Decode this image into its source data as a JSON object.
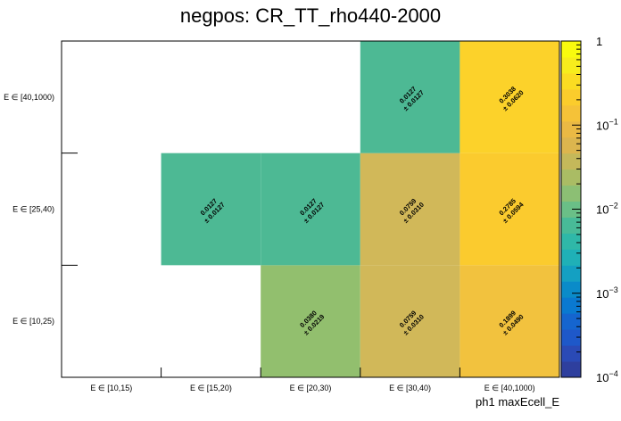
{
  "chart_data": {
    "type": "heatmap",
    "title": "negpos: CR_TT_rho440-2000",
    "xlabel": "ph1 maxEcell_E",
    "ylabel": "",
    "x_categories": [
      "E ∈ [10,15)",
      "E ∈ [15,20)",
      "E ∈ [20,30)",
      "E ∈ [30,40)",
      "E ∈ [40,1000)"
    ],
    "y_categories": [
      "E ∈ [10,25)",
      "E ∈ [25,40)",
      "E ∈ [40,1000)"
    ],
    "z_scale": "log",
    "z_range": [
      0.0001,
      1
    ],
    "z_tick_labels": [
      {
        "value": 1,
        "label": "1"
      },
      {
        "value": 0.1,
        "label": "10",
        "exp": "−1"
      },
      {
        "value": 0.01,
        "label": "10",
        "exp": "−2"
      },
      {
        "value": 0.001,
        "label": "10",
        "exp": "−3"
      },
      {
        "value": 0.0001,
        "label": "10",
        "exp": "−4"
      }
    ],
    "cells": [
      {
        "x": 2,
        "y": 0,
        "value": 0.038,
        "value_text": "0.0380",
        "error_text": "± 0.0219",
        "color": "#92bf6e"
      },
      {
        "x": 3,
        "y": 0,
        "value": 0.0759,
        "value_text": "0.0759",
        "error_text": "± 0.0310",
        "color": "#d1b859"
      },
      {
        "x": 4,
        "y": 0,
        "value": 0.1899,
        "value_text": "0.1899",
        "error_text": "± 0.0490",
        "color": "#f2c23e"
      },
      {
        "x": 1,
        "y": 1,
        "value": 0.0127,
        "value_text": "0.0127",
        "error_text": "± 0.0127",
        "color": "#4db994"
      },
      {
        "x": 2,
        "y": 1,
        "value": 0.0127,
        "value_text": "0.0127",
        "error_text": "± 0.0127",
        "color": "#4db994"
      },
      {
        "x": 3,
        "y": 1,
        "value": 0.0759,
        "value_text": "0.0759",
        "error_text": "± 0.0310",
        "color": "#d1b859"
      },
      {
        "x": 4,
        "y": 1,
        "value": 0.2785,
        "value_text": "0.2785",
        "error_text": "± 0.0594",
        "color": "#fbcb2e"
      },
      {
        "x": 3,
        "y": 2,
        "value": 0.0127,
        "value_text": "0.0127",
        "error_text": "± 0.0127",
        "color": "#4db994"
      },
      {
        "x": 4,
        "y": 2,
        "value": 0.3038,
        "value_text": "0.3038",
        "error_text": "± 0.0620",
        "color": "#fcd22a"
      }
    ],
    "palette": [
      "#2e3f9e",
      "#2a4ab6",
      "#1e58c9",
      "#1565cf",
      "#0a79d0",
      "#0a8bc9",
      "#14a0c2",
      "#1fb0b7",
      "#2fb8a8",
      "#48bb98",
      "#6abf87",
      "#8cbf74",
      "#aabc64",
      "#c4b85a",
      "#dcb54e",
      "#eab944",
      "#f5c238",
      "#fbcc2c",
      "#fbdc22",
      "#f7ed1c",
      "#f9fb0e"
    ]
  }
}
